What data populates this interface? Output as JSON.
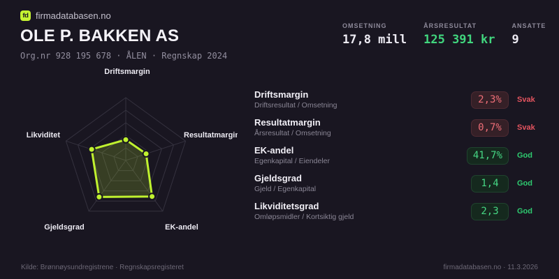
{
  "brand": {
    "logo_text": "fd",
    "domain": "firmadatabasen.no"
  },
  "header": {
    "title": "OLE P. BAKKEN AS",
    "subtitle": "Org.nr 928 195 678 · ÅLEN · Regnskap 2024"
  },
  "key_figures": [
    {
      "label": "OMSETNING",
      "value": "17,8 mill",
      "color": "#eceaf2"
    },
    {
      "label": "ÅRSRESULTAT",
      "value": "125 391 kr",
      "color": "#41d67e"
    },
    {
      "label": "ANSATTE",
      "value": "9",
      "color": "#eceaf2"
    }
  ],
  "chart_data": {
    "type": "radar",
    "axes": [
      "Driftsmargin",
      "Resultatmargin",
      "EK-andel",
      "Gjeldsgrad",
      "Likviditet"
    ],
    "normalized_values": [
      0.33,
      0.34,
      0.71,
      0.72,
      0.57
    ],
    "rings": [
      0.2,
      0.4,
      0.6,
      0.8,
      1.0
    ],
    "stroke_color": "#c0f22f",
    "fill_color": "rgba(195,242,50,0.18)",
    "grid_color": "#35323f",
    "dot_border_color": "#191621"
  },
  "metrics": [
    {
      "name": "Driftsmargin",
      "formula": "Driftsresultat / Omsetning",
      "value": "2,3%",
      "rating": "Svak",
      "status": "bad"
    },
    {
      "name": "Resultatmargin",
      "formula": "Årsresultat / Omsetning",
      "value": "0,7%",
      "rating": "Svak",
      "status": "bad"
    },
    {
      "name": "EK-andel",
      "formula": "Egenkapital / Eiendeler",
      "value": "41,7%",
      "rating": "God",
      "status": "good"
    },
    {
      "name": "Gjeldsgrad",
      "formula": "Gjeld / Egenkapital",
      "value": "1,4",
      "rating": "God",
      "status": "good"
    },
    {
      "name": "Likviditetsgrad",
      "formula": "Omløpsmidler / Kortsiktig gjeld",
      "value": "2,3",
      "rating": "God",
      "status": "good"
    }
  ],
  "footer": {
    "source": "Kilde: Brønnøysundregistrene · Regnskapsregisteret",
    "attribution": "firmadatabasen.no · 11.3.2026"
  },
  "colors": {
    "background": "#191621",
    "accent": "#c6f432",
    "good": "#2ecb70",
    "bad": "#e4545f"
  }
}
